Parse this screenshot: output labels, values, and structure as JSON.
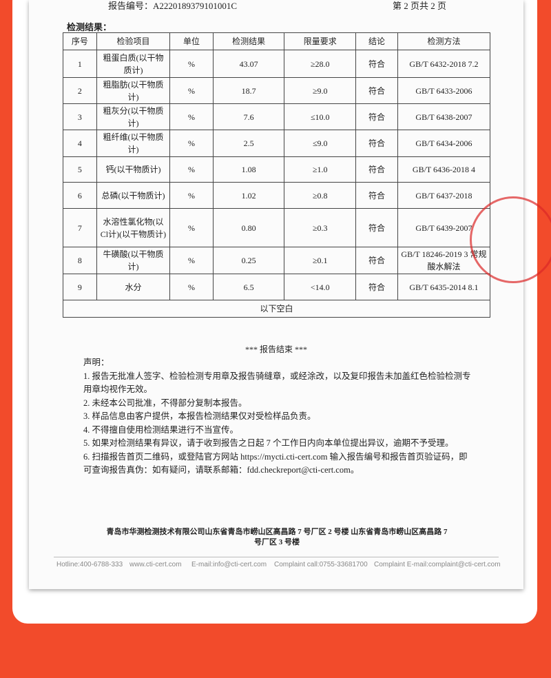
{
  "header": {
    "report_no": "报告编号：A2220189379101001C",
    "page": "第 2 页共 2 页"
  },
  "section_title": "检测结果：",
  "table": {
    "headers": [
      "序号",
      "检验项目",
      "单位",
      "检测结果",
      "限量要求",
      "结论",
      "检测方法"
    ],
    "rows": [
      [
        "1",
        "粗蛋白质(以干物质计)",
        "%",
        "43.07",
        "≥28.0",
        "符合",
        "GB/T 6432-2018 7.2"
      ],
      [
        "2",
        "粗脂肪(以干物质计)",
        "%",
        "18.7",
        "≥9.0",
        "符合",
        "GB/T 6433-2006"
      ],
      [
        "3",
        "粗灰分(以干物质计)",
        "%",
        "7.6",
        "≤10.0",
        "符合",
        "GB/T 6438-2007"
      ],
      [
        "4",
        "粗纤维(以干物质计)",
        "%",
        "2.5",
        "≤9.0",
        "符合",
        "GB/T 6434-2006"
      ],
      [
        "5",
        "钙(以干物质计)",
        "%",
        "1.08",
        "≥1.0",
        "符合",
        "GB/T 6436-2018 4"
      ],
      [
        "6",
        "总磷(以干物质计)",
        "%",
        "1.02",
        "≥0.8",
        "符合",
        "GB/T 6437-2018"
      ],
      [
        "7",
        "水溶性氯化物(以Cl计)(以干物质计)",
        "%",
        "0.80",
        "≥0.3",
        "符合",
        "GB/T 6439-2007"
      ],
      [
        "8",
        "牛磺酸(以干物质计)",
        "%",
        "0.25",
        "≥0.1",
        "符合",
        "GB/T 18246-2019 3 常规酸水解法"
      ],
      [
        "9",
        "水分",
        "%",
        "6.5",
        "<14.0",
        "符合",
        "GB/T 6435-2014 8.1"
      ]
    ],
    "footer_note": "以下空白"
  },
  "end_note": "*** 报告结束 ***",
  "statement": {
    "title": "声明：",
    "items": [
      "1. 报告无批准人签字、检验检测专用章及报告骑缝章，或经涂改，以及复印报告未加盖红色检验检测专用章均视作无效。",
      "2. 未经本公司批准，不得部分复制本报告。",
      "3. 样品信息由客户提供，本报告检测结果仅对受检样品负责。",
      "4. 不得擅自使用检测结果进行不当宣传。",
      "5. 如果对检测结果有异议，请于收到报告之日起 7 个工作日内向本单位提出异议，逾期不予受理。",
      "6. 扫描报告首页二维码，或登陆官方网站 https://mycti.cti-cert.com 输入报告编号和报告首页验证码，即可查询报告真伪：如有疑问，请联系邮箱：fdd.checkreport@cti-cert.com。"
    ]
  },
  "address": "青岛市华测检测技术有限公司山东省青岛市崂山区高昌路 7 号厂区 2 号楼  山东省青岛市崂山区高昌路 7 号厂区 3 号楼",
  "contact": [
    "Hotline:400-6788-333",
    "www.cti-cert.com",
    "E-mail:info@cti-cert.com",
    "Complaint call:0755-33681700",
    "Complaint E-mail:complaint@cti-cert.com"
  ]
}
